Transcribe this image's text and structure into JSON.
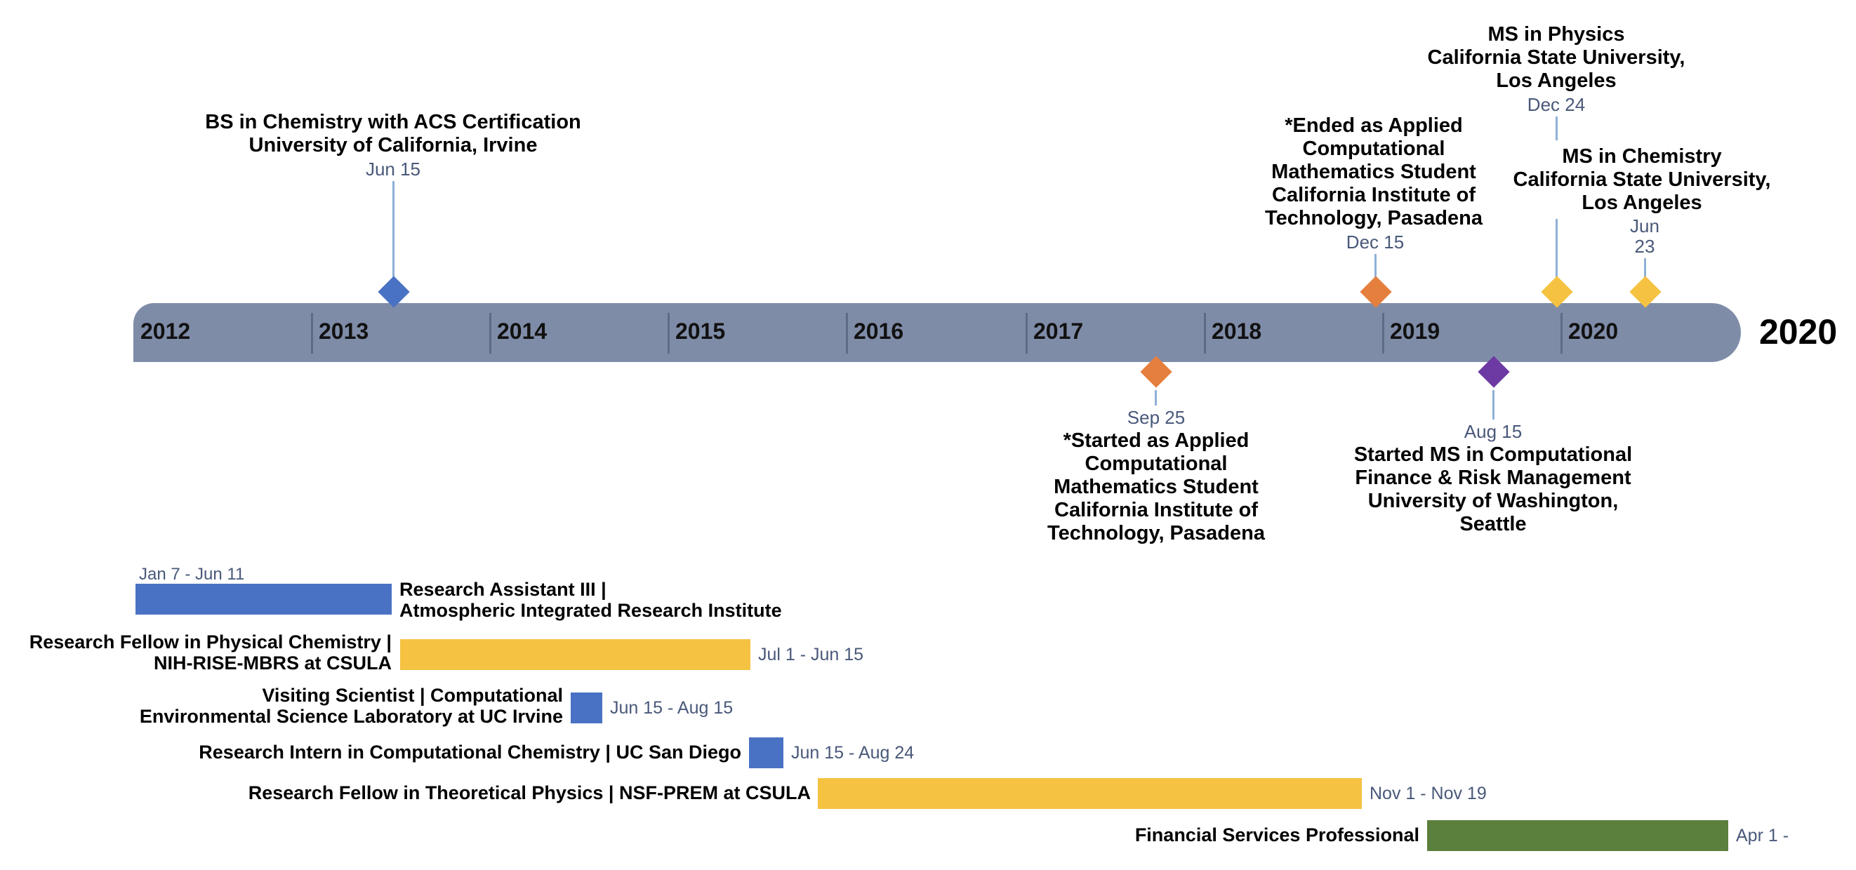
{
  "axis": {
    "years": [
      "2012",
      "2013",
      "2014",
      "2015",
      "2016",
      "2017",
      "2018",
      "2019",
      "2020"
    ],
    "end_label": "2020"
  },
  "colors": {
    "axis": "#7f8ca8",
    "blue": "#4a72c4",
    "yellow": "#f5c242",
    "orange": "#e57f3e",
    "purple": "#6d39a3",
    "green": "#5b7f3c"
  },
  "milestones": [
    {
      "date": "Jun 15",
      "lines": [
        "BS in Chemistry with ACS Certification",
        "University of California, Irvine"
      ],
      "color": "blue"
    },
    {
      "date": "Sep 25",
      "lines": [
        "*Started as Applied",
        "Computational",
        "Mathematics Student",
        "California Institute of",
        "Technology, Pasadena"
      ],
      "color": "orange"
    },
    {
      "date": "Dec 15",
      "lines": [
        "*Ended as Applied",
        "Computational",
        "Mathematics Student",
        "California Institute of",
        "Technology, Pasadena"
      ],
      "color": "orange"
    },
    {
      "date": "Aug 15",
      "lines": [
        "Started MS in Computational",
        "Finance & Risk Management",
        "University of Washington,",
        "Seattle"
      ],
      "color": "purple"
    },
    {
      "date": "Dec 24",
      "lines": [
        "MS in Physics",
        "California State University,",
        "Los Angeles"
      ],
      "color": "yellow"
    },
    {
      "date_lines": [
        "Jun",
        "23"
      ],
      "lines": [
        "MS in Chemistry",
        "California State University,",
        "Los Angeles"
      ],
      "color": "yellow"
    }
  ],
  "tasks": [
    {
      "title_lines": [
        "Research Assistant III |",
        "Atmospheric Integrated Research Institute"
      ],
      "dates": "Jan 7 - Jun 11",
      "color": "blue"
    },
    {
      "title_lines": [
        "Research Fellow in Physical Chemistry |",
        "NIH-RISE-MBRS at CSULA"
      ],
      "dates": "Jul 1 - Jun 15",
      "color": "yellow"
    },
    {
      "title_lines": [
        "Visiting Scientist | Computational",
        "Environmental Science Laboratory at UC Irvine"
      ],
      "dates": "Jun 15 - Aug 15",
      "color": "blue"
    },
    {
      "title_lines": [
        "Research Intern in Computational Chemistry | UC San Diego"
      ],
      "dates": "Jun 15 - Aug 24",
      "color": "blue"
    },
    {
      "title_lines": [
        "Research Fellow in Theoretical Physics | NSF-PREM at CSULA"
      ],
      "dates": "Nov 1 - Nov 19",
      "color": "yellow"
    },
    {
      "title_lines": [
        "Financial Services Professional"
      ],
      "dates": "Apr 1 -",
      "color": "green"
    }
  ]
}
